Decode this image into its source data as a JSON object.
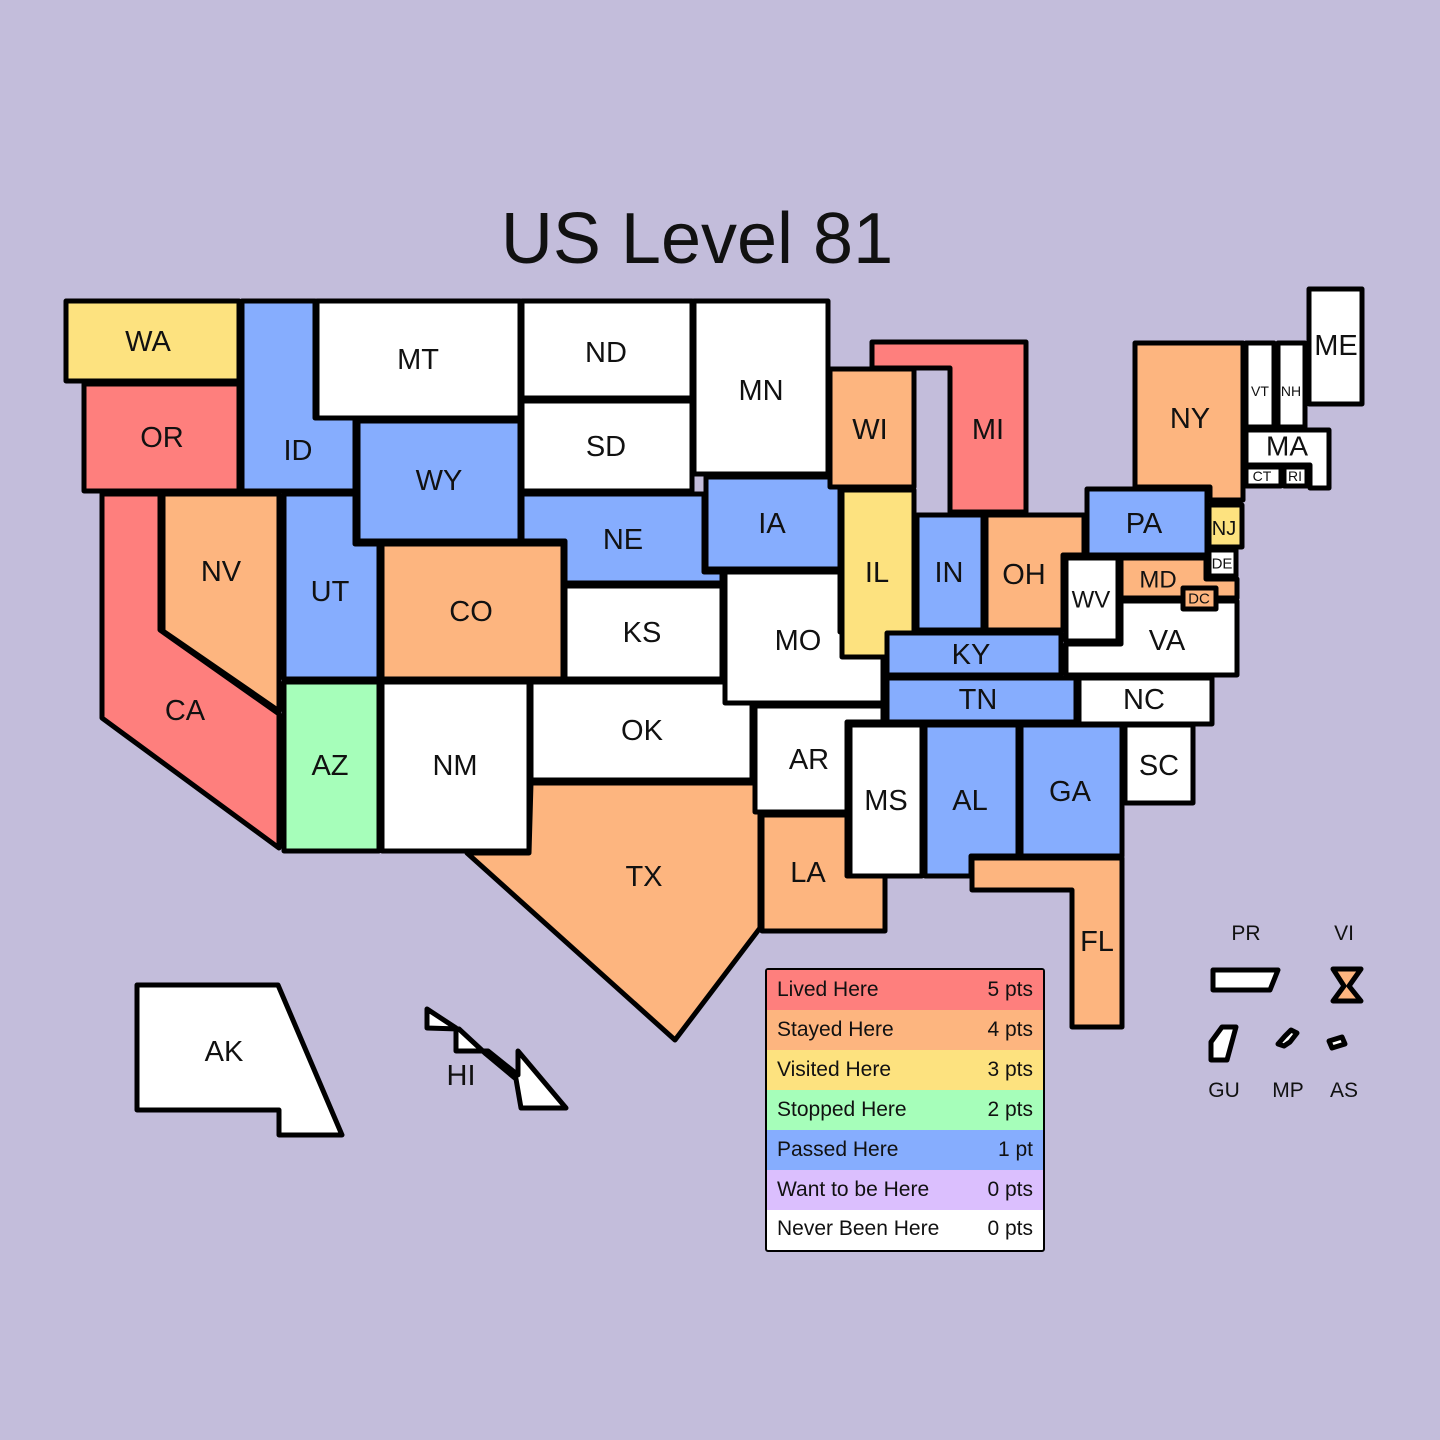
{
  "title": "US Level 81",
  "colors": {
    "lived": "#fe7f7d",
    "stayed": "#fdb57f",
    "visited": "#fde27f",
    "stopped": "#a6feba",
    "passed": "#86adfe",
    "want": "#dbbffe",
    "never": "#ffffff",
    "background": "#c3bddb"
  },
  "legend": [
    {
      "label": "Lived Here",
      "points": "5 pts",
      "level": "lived"
    },
    {
      "label": "Stayed Here",
      "points": "4 pts",
      "level": "stayed"
    },
    {
      "label": "Visited Here",
      "points": "3 pts",
      "level": "visited"
    },
    {
      "label": "Stopped Here",
      "points": "2 pts",
      "level": "stopped"
    },
    {
      "label": "Passed Here",
      "points": "1 pt",
      "level": "passed"
    },
    {
      "label": "Want to be Here",
      "points": "0 pts",
      "level": "want"
    },
    {
      "label": "Never Been Here",
      "points": "0 pts",
      "level": "never"
    }
  ],
  "states": {
    "WA": {
      "label": "WA",
      "level": "visited"
    },
    "OR": {
      "label": "OR",
      "level": "lived"
    },
    "CA": {
      "label": "CA",
      "level": "lived"
    },
    "NV": {
      "label": "NV",
      "level": "stayed"
    },
    "ID": {
      "label": "ID",
      "level": "passed"
    },
    "MT": {
      "label": "MT",
      "level": "never"
    },
    "WY": {
      "label": "WY",
      "level": "passed"
    },
    "UT": {
      "label": "UT",
      "level": "passed"
    },
    "AZ": {
      "label": "AZ",
      "level": "stopped"
    },
    "CO": {
      "label": "CO",
      "level": "stayed"
    },
    "NM": {
      "label": "NM",
      "level": "never"
    },
    "ND": {
      "label": "ND",
      "level": "never"
    },
    "SD": {
      "label": "SD",
      "level": "never"
    },
    "NE": {
      "label": "NE",
      "level": "passed"
    },
    "KS": {
      "label": "KS",
      "level": "never"
    },
    "OK": {
      "label": "OK",
      "level": "never"
    },
    "TX": {
      "label": "TX",
      "level": "stayed"
    },
    "MN": {
      "label": "MN",
      "level": "never"
    },
    "IA": {
      "label": "IA",
      "level": "passed"
    },
    "MO": {
      "label": "MO",
      "level": "never"
    },
    "AR": {
      "label": "AR",
      "level": "never"
    },
    "LA": {
      "label": "LA",
      "level": "stayed"
    },
    "WI": {
      "label": "WI",
      "level": "stayed"
    },
    "IL": {
      "label": "IL",
      "level": "visited"
    },
    "MI": {
      "label": "MI",
      "level": "lived"
    },
    "IN": {
      "label": "IN",
      "level": "passed"
    },
    "OH": {
      "label": "OH",
      "level": "stayed"
    },
    "KY": {
      "label": "KY",
      "level": "passed"
    },
    "TN": {
      "label": "TN",
      "level": "passed"
    },
    "MS": {
      "label": "MS",
      "level": "never"
    },
    "AL": {
      "label": "AL",
      "level": "passed"
    },
    "GA": {
      "label": "GA",
      "level": "passed"
    },
    "FL": {
      "label": "FL",
      "level": "stayed"
    },
    "SC": {
      "label": "SC",
      "level": "never"
    },
    "NC": {
      "label": "NC",
      "level": "never"
    },
    "VA": {
      "label": "VA",
      "level": "never"
    },
    "WV": {
      "label": "WV",
      "level": "never"
    },
    "PA": {
      "label": "PA",
      "level": "passed"
    },
    "NY": {
      "label": "NY",
      "level": "stayed"
    },
    "NJ": {
      "label": "NJ",
      "level": "visited"
    },
    "DE": {
      "label": "DE",
      "level": "never"
    },
    "MD": {
      "label": "MD",
      "level": "stayed"
    },
    "DC": {
      "label": "DC",
      "level": "stayed"
    },
    "VT": {
      "label": "VT",
      "level": "never"
    },
    "NH": {
      "label": "NH",
      "level": "never"
    },
    "ME": {
      "label": "ME",
      "level": "never"
    },
    "MA": {
      "label": "MA",
      "level": "never"
    },
    "CT": {
      "label": "CT",
      "level": "never"
    },
    "RI": {
      "label": "RI",
      "level": "never"
    },
    "AK": {
      "label": "AK",
      "level": "never"
    },
    "HI": {
      "label": "HI",
      "level": "never"
    }
  },
  "territories": {
    "PR": {
      "label": "PR",
      "level": "never"
    },
    "VI": {
      "label": "VI",
      "level": "stayed"
    },
    "GU": {
      "label": "GU",
      "level": "never"
    },
    "MP": {
      "label": "MP",
      "level": "never"
    },
    "AS": {
      "label": "AS",
      "level": "never"
    }
  }
}
